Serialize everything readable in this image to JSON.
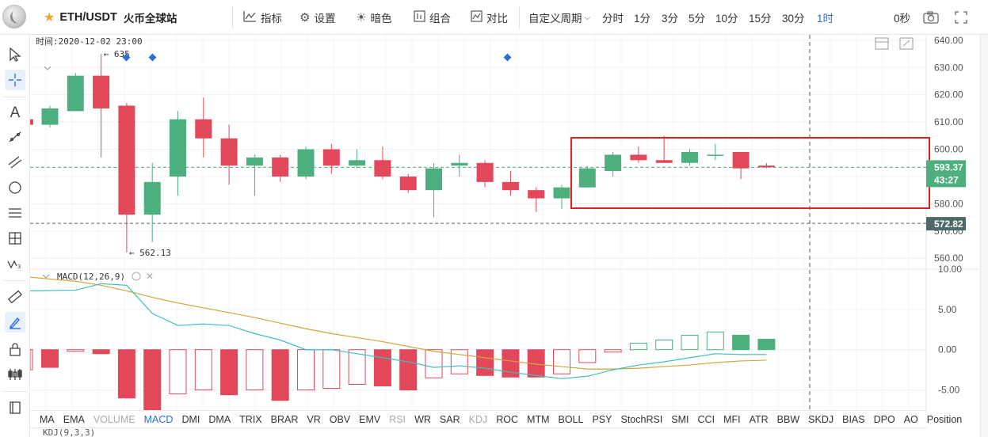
{
  "toolbar": {
    "symbol": "ETH/USDT",
    "exchange": "火币全球站",
    "indicators_label": "指标",
    "settings_label": "设置",
    "theme_label": "暗色",
    "combo_label": "组合",
    "compare_label": "对比",
    "custom_period_label": "自定义周期",
    "periods": [
      "分时",
      "1分",
      "3分",
      "5分",
      "10分",
      "15分",
      "30分",
      "1时"
    ],
    "active_period": "1时",
    "countdown": "0秒",
    "accent_color": "#2a6ed6",
    "star_color": "#f0a32c"
  },
  "chart": {
    "time_label": "时间:2020-12-02 23:00",
    "high_marker": "← 635",
    "low_marker": "← 562.13",
    "price_axis": [
      "640.00",
      "630.00",
      "620.00",
      "610.00",
      "600.00",
      "590.00",
      "580.00",
      "570.00",
      "560.00"
    ],
    "current_price_label": "593.37",
    "countdown_label": "43:27",
    "dashed_price_label": "572.82",
    "up_color": "#4caf7d",
    "down_color": "#e2475a",
    "highlight_box_color": "#e02020"
  },
  "chart_data": {
    "type": "candlestick",
    "candles": [
      {
        "o": 609,
        "c": 615,
        "h": 616,
        "l": 608
      },
      {
        "o": 614,
        "c": 627,
        "h": 628,
        "l": 614
      },
      {
        "o": 627,
        "c": 615,
        "h": 635,
        "l": 597
      },
      {
        "o": 616,
        "c": 576,
        "h": 617,
        "l": 562.13
      },
      {
        "o": 576,
        "c": 588,
        "h": 595,
        "l": 566
      },
      {
        "o": 590,
        "c": 611,
        "h": 614,
        "l": 583
      },
      {
        "o": 611,
        "c": 604,
        "h": 619,
        "l": 597
      },
      {
        "o": 604,
        "c": 594,
        "h": 609,
        "l": 587
      },
      {
        "o": 594,
        "c": 597,
        "h": 598,
        "l": 583
      },
      {
        "o": 597,
        "c": 590,
        "h": 598,
        "l": 588
      },
      {
        "o": 590,
        "c": 600,
        "h": 601,
        "l": 589
      },
      {
        "o": 600,
        "c": 594,
        "h": 602,
        "l": 591
      },
      {
        "o": 594,
        "c": 596,
        "h": 600,
        "l": 593
      },
      {
        "o": 596,
        "c": 590,
        "h": 601,
        "l": 589
      },
      {
        "o": 590,
        "c": 585,
        "h": 591,
        "l": 584
      },
      {
        "o": 585,
        "c": 593,
        "h": 595,
        "l": 575
      },
      {
        "o": 594,
        "c": 595,
        "h": 598,
        "l": 590
      },
      {
        "o": 595,
        "c": 588,
        "h": 596,
        "l": 586
      },
      {
        "o": 588,
        "c": 585,
        "h": 592,
        "l": 583
      },
      {
        "o": 585,
        "c": 582,
        "h": 586,
        "l": 577
      },
      {
        "o": 582,
        "c": 586,
        "h": 587,
        "l": 578
      },
      {
        "o": 586,
        "c": 593,
        "h": 594,
        "l": 586
      },
      {
        "o": 592,
        "c": 598,
        "h": 599,
        "l": 590
      },
      {
        "o": 598,
        "c": 596,
        "h": 601,
        "l": 595
      },
      {
        "o": 596,
        "c": 595,
        "h": 605,
        "l": 595
      },
      {
        "o": 595,
        "c": 599,
        "h": 600,
        "l": 594
      },
      {
        "o": 598,
        "c": 598,
        "h": 602,
        "l": 596
      },
      {
        "o": 599,
        "c": 593,
        "h": 599,
        "l": 589
      },
      {
        "o": 594,
        "c": 593.37,
        "h": 595,
        "l": 593
      }
    ],
    "ylim": [
      556,
      642
    ]
  },
  "macd": {
    "title": "MACD(12,26,9)",
    "axis": [
      "10.00",
      "5.00",
      "0.00",
      "-5.00"
    ],
    "ylim": [
      -7.5,
      10
    ],
    "hist": [
      -2.2,
      -0.2,
      -0.5,
      -6,
      -7.5,
      -5.5,
      -5,
      -5.6,
      -5,
      -6.3,
      -5,
      -4.8,
      -4.3,
      -4.5,
      -5,
      -3.5,
      -3,
      -3.2,
      -3.4,
      -3.4,
      -3,
      -1.6,
      -0.3,
      0.8,
      1.2,
      1.8,
      2.2,
      1.8,
      1.3
    ],
    "dif": [
      7.3,
      7.4,
      8.2,
      8.0,
      4.5,
      3.0,
      3.2,
      3.0,
      2.0,
      1.2,
      0.0,
      0.0,
      -0.5,
      -1.0,
      -1.5,
      -2.2,
      -2.0,
      -2.3,
      -2.8,
      -3.2,
      -3.6,
      -3.3,
      -2.5,
      -1.9,
      -1.5,
      -1.0,
      -0.5,
      -0.6,
      -0.6
    ],
    "dea": [
      9.0,
      8.5,
      8.0,
      7.3,
      6.5,
      5.8,
      5.2,
      4.6,
      4.0,
      3.3,
      2.6,
      2.0,
      1.5,
      1.0,
      0.4,
      -0.2,
      -0.6,
      -1.0,
      -1.4,
      -1.8,
      -2.1,
      -2.4,
      -2.4,
      -2.3,
      -2.1,
      -1.9,
      -1.6,
      -1.4,
      -1.3
    ],
    "dif_color": "#3fbfbf",
    "dea_color": "#d4a43a"
  },
  "indicator_tabs": [
    {
      "label": "MA",
      "state": "normal"
    },
    {
      "label": "EMA",
      "state": "normal"
    },
    {
      "label": "VOLUME",
      "state": "dim"
    },
    {
      "label": "MACD",
      "state": "active"
    },
    {
      "label": "DMI",
      "state": "normal"
    },
    {
      "label": "DMA",
      "state": "normal"
    },
    {
      "label": "TRIX",
      "state": "normal"
    },
    {
      "label": "BRAR",
      "state": "normal"
    },
    {
      "label": "VR",
      "state": "normal"
    },
    {
      "label": "OBV",
      "state": "normal"
    },
    {
      "label": "EMV",
      "state": "normal"
    },
    {
      "label": "RSI",
      "state": "dim"
    },
    {
      "label": "WR",
      "state": "normal"
    },
    {
      "label": "SAR",
      "state": "normal"
    },
    {
      "label": "KDJ",
      "state": "dim"
    },
    {
      "label": "ROC",
      "state": "normal"
    },
    {
      "label": "MTM",
      "state": "normal"
    },
    {
      "label": "BOLL",
      "state": "normal"
    },
    {
      "label": "PSY",
      "state": "normal"
    },
    {
      "label": "StochRSI",
      "state": "normal"
    },
    {
      "label": "SMI",
      "state": "normal"
    },
    {
      "label": "CCI",
      "state": "normal"
    },
    {
      "label": "MFI",
      "state": "normal"
    },
    {
      "label": "ATR",
      "state": "normal"
    },
    {
      "label": "BBW",
      "state": "normal"
    },
    {
      "label": "SKDJ",
      "state": "normal"
    },
    {
      "label": "BIAS",
      "state": "normal"
    },
    {
      "label": "DPO",
      "state": "normal"
    },
    {
      "label": "AO",
      "state": "normal"
    },
    {
      "label": "Position",
      "state": "normal"
    }
  ],
  "kdj": {
    "title": "KDJ(9,3,3)"
  }
}
